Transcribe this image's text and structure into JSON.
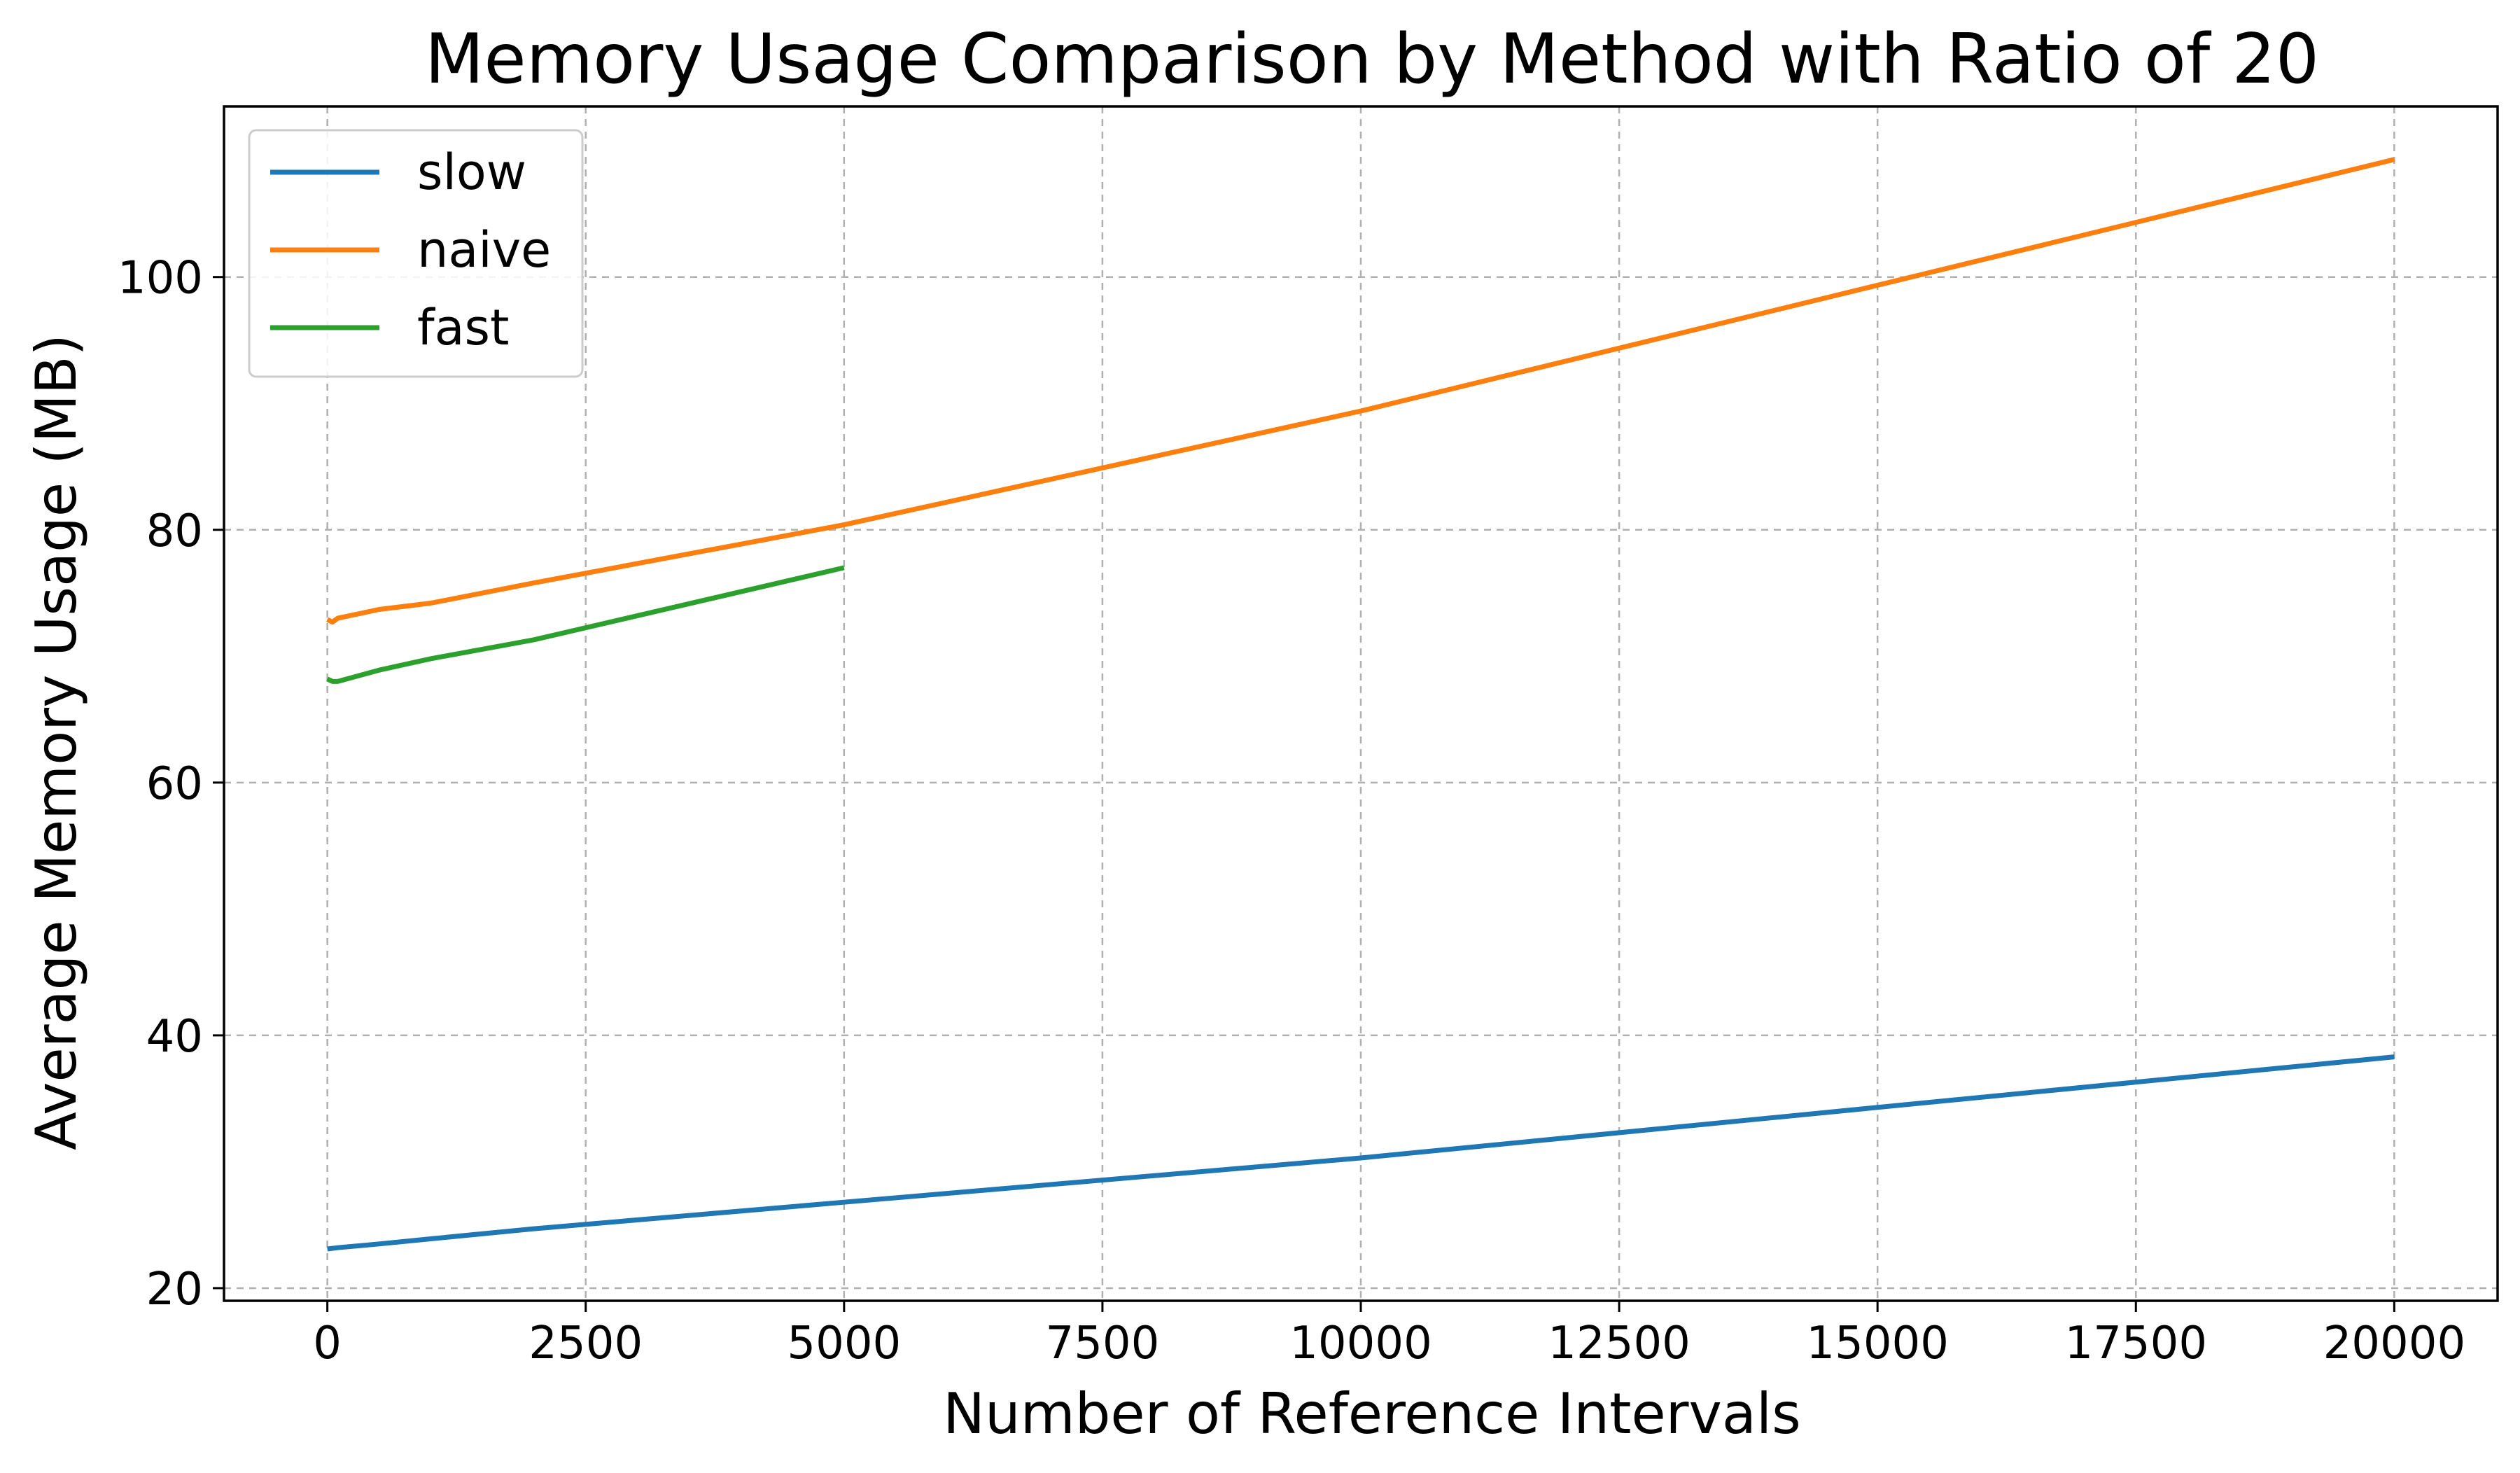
{
  "chart_data": {
    "type": "line",
    "title": "Memory Usage Comparison by Method with Ratio of 20",
    "xlabel": "Number of Reference Intervals",
    "ylabel": "Average Memory Usage (MB)",
    "xlim": [
      -1000,
      21000
    ],
    "ylim": [
      19,
      113.5
    ],
    "xticks": [
      0,
      2500,
      5000,
      7500,
      10000,
      12500,
      15000,
      17500,
      20000
    ],
    "xtick_labels": [
      "0",
      "2500",
      "5000",
      "7500",
      "10000",
      "12500",
      "15000",
      "17500",
      "20000"
    ],
    "yticks": [
      20,
      40,
      60,
      80,
      100
    ],
    "ytick_labels": [
      "20",
      "40",
      "60",
      "80",
      "100"
    ],
    "grid": true,
    "legend_position": "top-left",
    "series": [
      {
        "name": "slow",
        "color": "#1f77b4",
        "x": [
          0,
          100,
          500,
          1000,
          2000,
          5000,
          10000,
          20000
        ],
        "y": [
          23.1,
          23.2,
          23.5,
          23.9,
          24.7,
          26.8,
          30.3,
          38.3
        ]
      },
      {
        "name": "naive",
        "color": "#ff7f0e",
        "x": [
          0,
          50,
          100,
          500,
          1000,
          2000,
          5000,
          10000,
          20000
        ],
        "y": [
          72.9,
          72.7,
          73.0,
          73.7,
          74.2,
          75.8,
          80.4,
          89.4,
          109.3
        ]
      },
      {
        "name": "fast",
        "color": "#2ca02c",
        "x": [
          0,
          50,
          100,
          500,
          1000,
          2000,
          5000
        ],
        "y": [
          68.2,
          68.0,
          68.0,
          68.9,
          69.8,
          71.3,
          77.0
        ]
      }
    ]
  }
}
